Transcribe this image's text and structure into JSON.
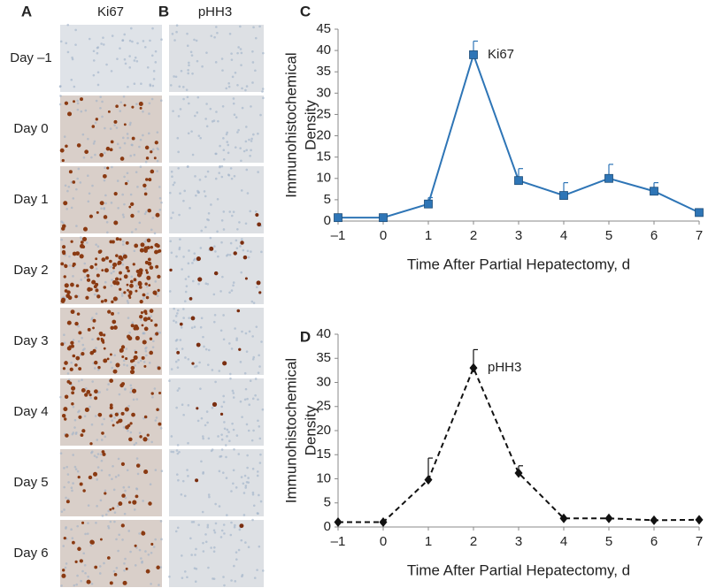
{
  "figure": {
    "panels": [
      "A",
      "B",
      "C",
      "D"
    ],
    "columns": [
      "Ki67",
      "pHH3"
    ],
    "rows": [
      "Day –1",
      "Day 0",
      "Day 1",
      "Day 2",
      "Day 3",
      "Day 4",
      "Day 5",
      "Day 6"
    ]
  },
  "chart_data": [
    {
      "type": "line",
      "ylabel": [
        "Immunohistochemical",
        "Density"
      ],
      "xlabel": "Time After Partial Hepatectomy, d",
      "x": [
        -1,
        0,
        1,
        2,
        3,
        4,
        5,
        6,
        7
      ],
      "series": [
        {
          "name": "Ki67",
          "color": "#2e75b6",
          "marker": "square",
          "dashed": false,
          "values": [
            0.8,
            0.8,
            4,
            39,
            9.5,
            6,
            10,
            7,
            2
          ],
          "errors": [
            null,
            null,
            1.5,
            3.2,
            2.8,
            3,
            3.3,
            2,
            null
          ]
        }
      ],
      "xlim": [
        -1,
        7
      ],
      "xticks": [
        {
          "value": -1,
          "label": "–1"
        },
        0,
        1,
        2,
        3,
        4,
        5,
        6,
        7
      ],
      "ylim": [
        0,
        45
      ],
      "yticks": [
        0,
        5,
        10,
        15,
        20,
        25,
        30,
        35,
        40,
        45
      ]
    },
    {
      "type": "line",
      "ylabel": [
        "Immunohistochemical",
        "Density"
      ],
      "xlabel": "Time After Partial Hepatectomy, d",
      "x": [
        -1,
        0,
        1,
        2,
        3,
        4,
        5,
        6,
        7
      ],
      "series": [
        {
          "name": "pHH3",
          "color": "#111111",
          "marker": "diamond",
          "dashed": true,
          "values": [
            1,
            1,
            9.8,
            33,
            11.2,
            1.8,
            1.8,
            1.4,
            1.5
          ],
          "errors": [
            null,
            null,
            4.5,
            3.8,
            1.5,
            null,
            null,
            null,
            null
          ]
        }
      ],
      "xlim": [
        -1,
        7
      ],
      "xticks": [
        {
          "value": -1,
          "label": "–1"
        },
        0,
        1,
        2,
        3,
        4,
        5,
        6,
        7
      ],
      "ylim": [
        0,
        40
      ],
      "yticks": [
        0,
        5,
        10,
        15,
        20,
        25,
        30,
        35,
        40
      ]
    }
  ]
}
